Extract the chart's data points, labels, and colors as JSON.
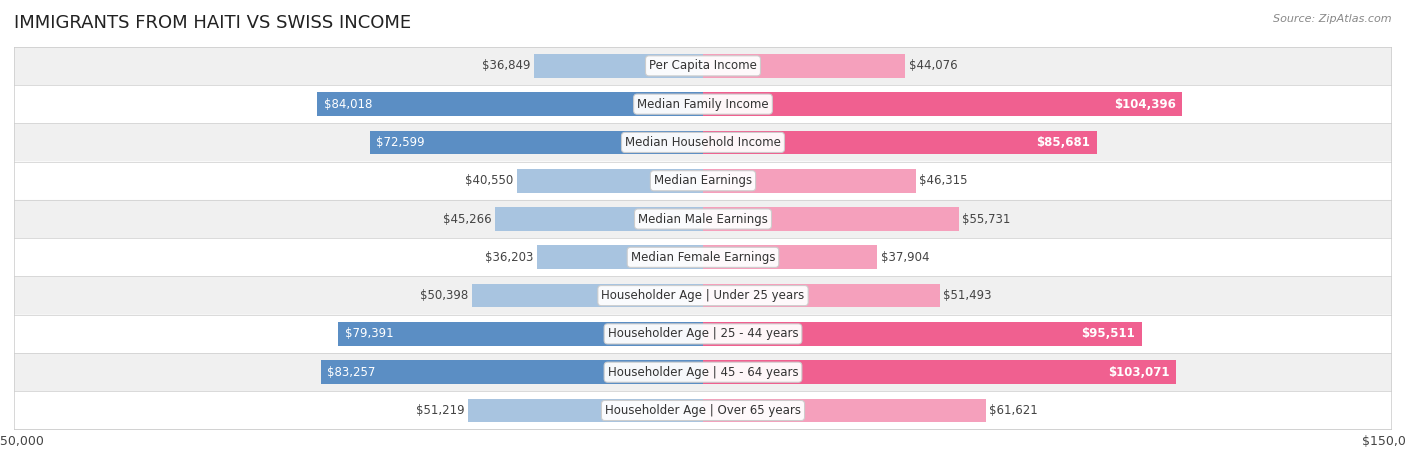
{
  "title": "IMMIGRANTS FROM HAITI VS SWISS INCOME",
  "source": "Source: ZipAtlas.com",
  "categories": [
    "Per Capita Income",
    "Median Family Income",
    "Median Household Income",
    "Median Earnings",
    "Median Male Earnings",
    "Median Female Earnings",
    "Householder Age | Under 25 years",
    "Householder Age | 25 - 44 years",
    "Householder Age | 45 - 64 years",
    "Householder Age | Over 65 years"
  ],
  "haiti_values": [
    36849,
    84018,
    72599,
    40550,
    45266,
    36203,
    50398,
    79391,
    83257,
    51219
  ],
  "swiss_values": [
    44076,
    104396,
    85681,
    46315,
    55731,
    37904,
    51493,
    95511,
    103071,
    61621
  ],
  "haiti_color_light": "#a8c4e0",
  "haiti_color_dark": "#5b8ec4",
  "swiss_color_light": "#f5a0bc",
  "swiss_color_dark": "#f06090",
  "max_value": 150000,
  "label_fontsize": 8.5,
  "title_fontsize": 13,
  "bg_color": "#ffffff",
  "row_bg": "#f0f0f0",
  "row_bg_alt": "#ffffff"
}
